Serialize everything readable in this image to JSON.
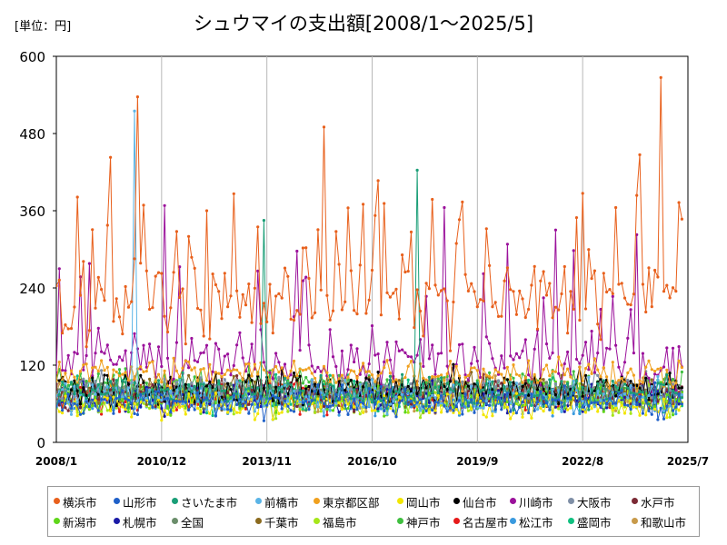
{
  "unit_label": "[単位：円]",
  "title": "シュウマイの支出額[2008/1～2025/5]",
  "chart_data": {
    "type": "line",
    "title": "シュウマイの支出額[2008/1～2025/5]",
    "unit": "[単位：円]",
    "xlabel": "",
    "ylabel": "",
    "x_start": "2008/1",
    "x_end": "2025/5",
    "x_ticks": [
      "2008/1",
      "2010/12",
      "2013/11",
      "2016/10",
      "2019/9",
      "2022/8",
      "2025/7"
    ],
    "y_ticks": [
      0,
      120,
      240,
      360,
      480,
      600
    ],
    "ylim": [
      0,
      600
    ],
    "grid": "vertical",
    "legend_position": "bottom",
    "series": [
      {
        "name": "横浜市",
        "color": "#e8601c",
        "base": 225,
        "spread": 55,
        "highlights": [
          {
            "date": "2009/7",
            "value": 443
          },
          {
            "date": "2010/4",
            "value": 537
          },
          {
            "date": "2012/3",
            "value": 360
          },
          {
            "date": "2015/6",
            "value": 490
          },
          {
            "date": "2016/7",
            "value": 370
          },
          {
            "date": "2017/11",
            "value": 327
          },
          {
            "date": "2022/8",
            "value": 387
          },
          {
            "date": "2023/7",
            "value": 365
          },
          {
            "date": "2024/3",
            "value": 447
          },
          {
            "date": "2024/10",
            "value": 567
          },
          {
            "date": "2025/5",
            "value": 347
          }
        ]
      },
      {
        "name": "山形市",
        "color": "#1f60c8",
        "base": 62,
        "spread": 22,
        "highlights": []
      },
      {
        "name": "さいたま市",
        "color": "#1a9e77",
        "base": 78,
        "spread": 25,
        "highlights": [
          {
            "date": "2013/10",
            "value": 345
          },
          {
            "date": "2018/1",
            "value": 423
          }
        ]
      },
      {
        "name": "前橋市",
        "color": "#5ab4e6",
        "base": 70,
        "spread": 22,
        "highlights": [
          {
            "date": "2010/3",
            "value": 515
          }
        ]
      },
      {
        "name": "東京都区部",
        "color": "#f0a01e",
        "base": 108,
        "spread": 22,
        "highlights": []
      },
      {
        "name": "岡山市",
        "color": "#f2e600",
        "base": 58,
        "spread": 18,
        "highlights": []
      },
      {
        "name": "仙台市",
        "color": "#000000",
        "base": 84,
        "spread": 26,
        "highlights": []
      },
      {
        "name": "川崎市",
        "color": "#9b119b",
        "base": 125,
        "spread": 38,
        "highlights": [
          {
            "date": "2011/1",
            "value": 368
          },
          {
            "date": "2018/10",
            "value": 365
          },
          {
            "date": "2020/7",
            "value": 308
          },
          {
            "date": "2021/11",
            "value": 330
          }
        ]
      },
      {
        "name": "大阪市",
        "color": "#7f8fa6",
        "base": 82,
        "spread": 22,
        "highlights": []
      },
      {
        "name": "水戸市",
        "color": "#7b2a35",
        "base": 76,
        "spread": 22,
        "highlights": []
      },
      {
        "name": "新潟市",
        "color": "#5fd61a",
        "base": 68,
        "spread": 22,
        "highlights": []
      },
      {
        "name": "札幌市",
        "color": "#1a1aa6",
        "base": 70,
        "spread": 22,
        "highlights": []
      },
      {
        "name": "全国",
        "color": "#6b8e6b",
        "base": 82,
        "spread": 10,
        "highlights": []
      },
      {
        "name": "千葉市",
        "color": "#8b6a1e",
        "base": 80,
        "spread": 22,
        "highlights": []
      },
      {
        "name": "福島市",
        "color": "#a6e61a",
        "base": 64,
        "spread": 20,
        "highlights": []
      },
      {
        "name": "神戸市",
        "color": "#3fbf3f",
        "base": 86,
        "spread": 24,
        "highlights": []
      },
      {
        "name": "名古屋市",
        "color": "#e61a1a",
        "base": 72,
        "spread": 22,
        "highlights": []
      },
      {
        "name": "松江市",
        "color": "#3a9adf",
        "base": 66,
        "spread": 22,
        "highlights": []
      },
      {
        "name": "盛岡市",
        "color": "#10c080",
        "base": 78,
        "spread": 24,
        "highlights": []
      },
      {
        "name": "和歌山市",
        "color": "#c89a4a",
        "base": 72,
        "spread": 22,
        "highlights": []
      }
    ]
  }
}
